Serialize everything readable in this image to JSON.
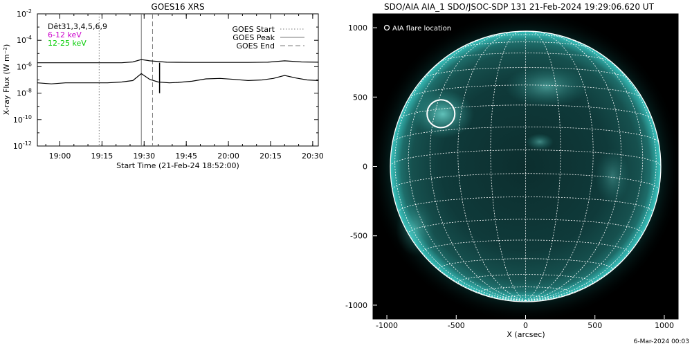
{
  "chart_data": [
    {
      "type": "line",
      "title": "GOES16 XRS",
      "xlabel": "Start Time (21-Feb-24 18:52:00)",
      "ylabel": "X-ray Flux (W m⁻²)",
      "y_log": true,
      "xlim_minutes_after_start": [
        0,
        100
      ],
      "ylim": [
        1e-12,
        0.01
      ],
      "x_ticks": [
        {
          "label": "19:00",
          "t": 8
        },
        {
          "label": "19:15",
          "t": 23
        },
        {
          "label": "19:30",
          "t": 38
        },
        {
          "label": "19:45",
          "t": 53
        },
        {
          "label": "20:00",
          "t": 68
        },
        {
          "label": "20:15",
          "t": 83
        },
        {
          "label": "20:30",
          "t": 98
        }
      ],
      "y_ticks": [
        {
          "base": "10",
          "exp": "-2",
          "value": 0.01
        },
        {
          "base": "10",
          "exp": "-4",
          "value": 0.0001
        },
        {
          "base": "10",
          "exp": "-6",
          "value": 1e-06
        },
        {
          "base": "10",
          "exp": "-8",
          "value": 1e-08
        },
        {
          "base": "10",
          "exp": "-10",
          "value": 1e-10
        },
        {
          "base": "10",
          "exp": "-12",
          "value": 1e-12
        }
      ],
      "info_lines": [
        {
          "text": "Dêt31,3,4,5,6,9",
          "color": "#000000"
        },
        {
          "text": "6-12 keV",
          "color": "#cc00cc"
        },
        {
          "text": "12-25 keV",
          "color": "#00cc00"
        }
      ],
      "legend": {
        "placement": "top-right",
        "items": [
          {
            "label": "GOES Start",
            "style": "dotted"
          },
          {
            "label": "GOES Peak",
            "style": "solid"
          },
          {
            "label": "GOES End",
            "style": "dashed"
          }
        ]
      },
      "markers_minutes": {
        "start": 22,
        "peak": 37,
        "end": 41
      },
      "series": [
        {
          "color": "#000000",
          "t": [
            0,
            10,
            20,
            30,
            34,
            37,
            40,
            46,
            55,
            60,
            68,
            75,
            82,
            88,
            94,
            100
          ],
          "values": [
            2e-06,
            2e-06,
            2e-06,
            2e-06,
            2.3e-06,
            3.5e-06,
            2.8e-06,
            2.2e-06,
            2.1e-06,
            2.1e-06,
            2.1e-06,
            2.1e-06,
            2.2e-06,
            2.8e-06,
            2.3e-06,
            2.2e-06
          ]
        },
        {
          "color": "#000000",
          "t": [
            0,
            5,
            10,
            15,
            20,
            25,
            30,
            34,
            37,
            40,
            43,
            47,
            50,
            55,
            60,
            65,
            70,
            75,
            80,
            84,
            88,
            92,
            96,
            100
          ],
          "values": [
            6e-08,
            5e-08,
            6e-08,
            6e-08,
            6e-08,
            6e-08,
            7e-08,
            9e-08,
            3e-07,
            1.1e-07,
            7e-08,
            6e-08,
            6.5e-08,
            8e-08,
            1.2e-07,
            1.3e-07,
            1.1e-07,
            9e-08,
            1e-07,
            1.3e-07,
            2.2e-07,
            1.4e-07,
            1e-07,
            9e-08
          ]
        }
      ]
    },
    {
      "type": "image",
      "title": "SDO/AIA AIA_1 SDO/JSOC-SDP 131 21-Feb-2024 19:29:06.620 UT",
      "xlabel": "X (arcsec)",
      "ylabel": "",
      "xlim": [
        -1100,
        1100
      ],
      "ylim": [
        -1100,
        1100
      ],
      "x_ticks": [
        "-1000",
        "-500",
        "0",
        "500",
        "1000"
      ],
      "y_ticks": [
        "1000",
        "500",
        "0",
        "-500",
        "-1000"
      ],
      "grid": true,
      "grid_color": "#ffffff",
      "solar_radius_arcsec": 975,
      "legend_label": "AIA flare location",
      "flare": {
        "x": -610,
        "y": 380,
        "radius_arcsec": 100
      },
      "image_colors": {
        "background": "#000000",
        "limb": "#15b8b0",
        "disk_dark": "#0e3a3a",
        "disk_mid": "#1a5a58"
      }
    }
  ],
  "footer": {
    "timestamp": "6-Mar-2024 00:03"
  }
}
